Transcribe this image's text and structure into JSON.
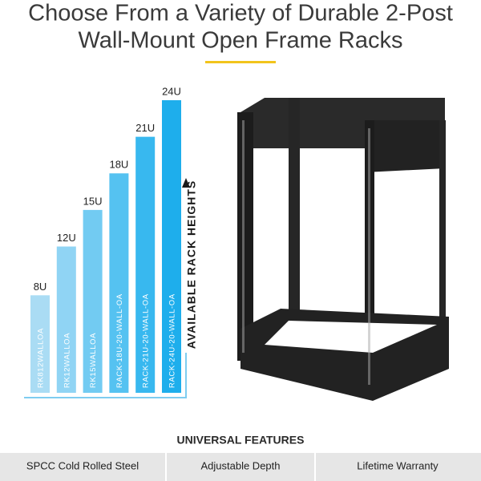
{
  "header": {
    "title_lines": [
      "Choose From a Variety of Durable 2-Post",
      "Wall-Mount Open Frame Racks"
    ]
  },
  "chart_data": {
    "type": "bar",
    "axis_label": "AVAILABLE RACK HEIGHTS",
    "categories": [
      "RK812WALLOA",
      "RK12WALLOA",
      "RK15WALLOA",
      "RACK-18U-20-WALL-OA",
      "RACK-21U-20-WALL-OA",
      "RACK-24U-20-WALL-OA"
    ],
    "values": [
      8,
      12,
      15,
      18,
      21,
      24
    ],
    "value_labels": [
      "8U",
      "12U",
      "15U",
      "18U",
      "21U",
      "24U"
    ],
    "colors": [
      "#aadcf4",
      "#90d4f4",
      "#72cbf2",
      "#55c2f1",
      "#38b8ef",
      "#1eaeec"
    ]
  },
  "features": {
    "title": "UNIVERSAL FEATURES",
    "items": [
      "SPCC Cold Rolled Steel",
      "Adjustable Depth",
      "Lifetime Warranty"
    ]
  }
}
